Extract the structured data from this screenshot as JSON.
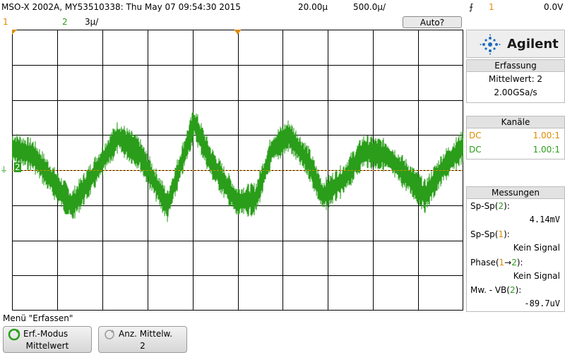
{
  "status_bar": {
    "model_info": "MSO-X 2002A, MY53510338: Thu May 07 09:54:30 2015",
    "time_scale": "20.00µ",
    "delay": "500.0µ/",
    "auto_label": "Auto?",
    "trigger_channel": "1",
    "trigger_level": "0.0V"
  },
  "channel_row": {
    "ch1": "1",
    "ch2": "2",
    "ch2_scale": "3µ/"
  },
  "brand": {
    "name": "Agilent"
  },
  "acquisition": {
    "header": "Erfassung",
    "mode": "Mittelwert: 2",
    "rate": "2.00GSa/s"
  },
  "channels": {
    "header": "Kanäle",
    "rows": [
      {
        "coupling": "DC",
        "ratio": "1.00:1",
        "color": "#e08a00"
      },
      {
        "coupling": "DC",
        "ratio": "1.00:1",
        "color": "#2a9d1a"
      }
    ]
  },
  "measurements": {
    "header": "Messungen",
    "items": [
      {
        "name": "Sp-Sp(",
        "ch": "2",
        "close": "):",
        "value": "4.14mV"
      },
      {
        "name": "Sp-Sp(",
        "ch": "1",
        "close": "):",
        "value": "Kein Signal"
      },
      {
        "name": "Phase(",
        "ch": "1",
        "arrow": "→",
        "ch_b": "2",
        "close": "):",
        "value": "Kein Signal"
      },
      {
        "name": "Mw. - VB(",
        "ch": "2",
        "close": "):",
        "value": "-89.7uV"
      }
    ]
  },
  "menu": {
    "title": "Menü \"Erfassen\"",
    "softkeys": [
      {
        "label": "Erf.-Modus",
        "value": "Mittelwert"
      },
      {
        "label": "Anz. Mittelw.",
        "value": "2"
      }
    ]
  },
  "colors": {
    "ch1": "#e08a00",
    "ch2": "#2a9d1a",
    "grid": "#000000"
  }
}
